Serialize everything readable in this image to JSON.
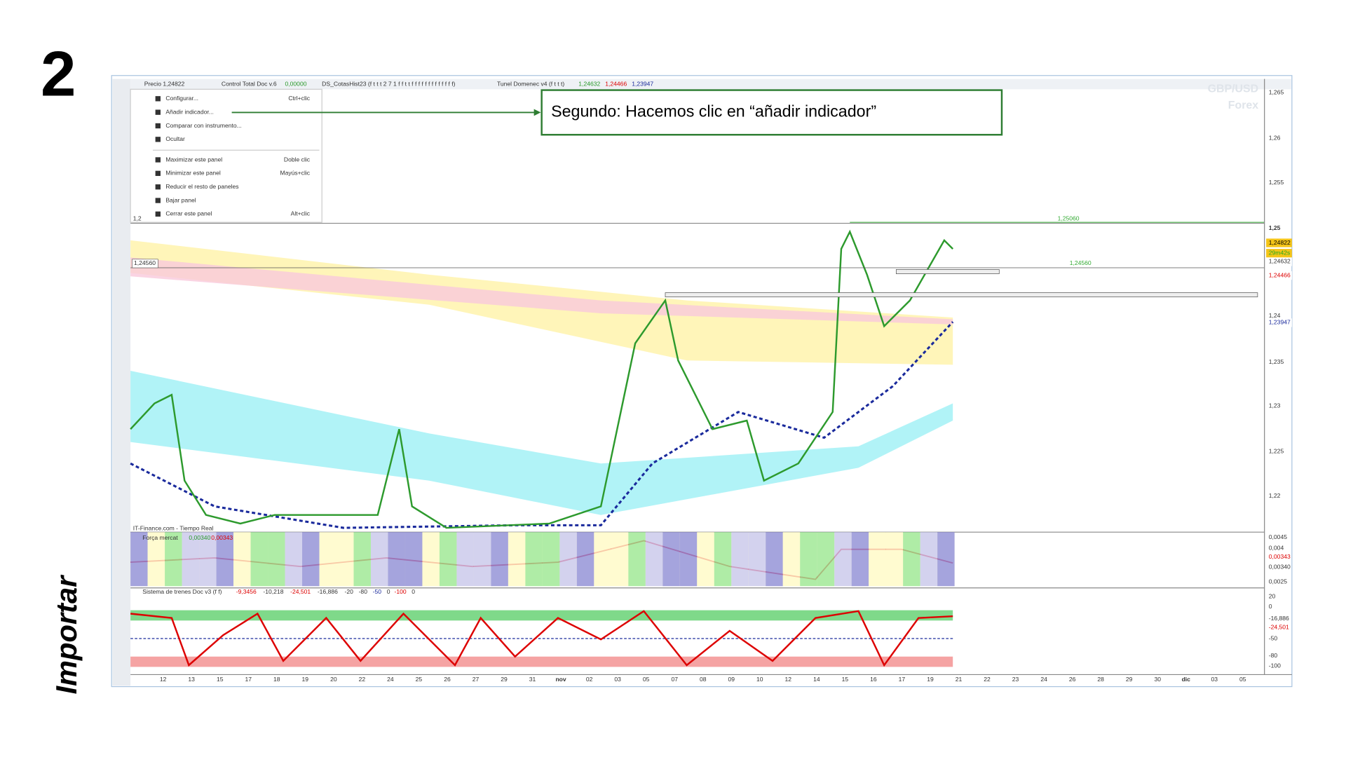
{
  "step": "2",
  "side_label": "Importar",
  "header": {
    "price": "Precio 1,24822",
    "control": "Control Total Doc v.6",
    "control_value": "0,00000",
    "cotas": "DS_CotasHist23 (f t t t 2 7 1 f f t t f f f f f f f f f f f f f)",
    "tunel": "Tunel Domenec v4 (f t t t)",
    "tunel_values": [
      "1,24632",
      "1,24466",
      "1,23947"
    ]
  },
  "menu": [
    {
      "label": "Configurar...",
      "shortcut": "Ctrl+clic"
    },
    {
      "label": "Añadir indicador...",
      "shortcut": ""
    },
    {
      "label": "Comparar con instrumento...",
      "shortcut": ""
    },
    {
      "label": "Ocultar",
      "shortcut": ""
    },
    {
      "label": "Maximizar este panel",
      "shortcut": "Doble clic"
    },
    {
      "label": "Minimizar este panel",
      "shortcut": "Mayús+clic"
    },
    {
      "label": "Reducir el resto de paneles",
      "shortcut": ""
    },
    {
      "label": "Bajar panel",
      "shortcut": ""
    },
    {
      "label": "Cerrar este panel",
      "shortcut": "Alt+clic"
    }
  ],
  "annotation": "Segundo: Hacemos clic en “añadir indicador”",
  "watermark": [
    "GBP/USD",
    "Forex"
  ],
  "price_axis": [
    "1,265",
    "1,26",
    "1,255",
    "1,25",
    "1,24",
    "1,235",
    "1,23",
    "1,225",
    "1,22"
  ],
  "price_tags": [
    "1,24822",
    "29m42s",
    "1,24632",
    "1,24466",
    "1,23947"
  ],
  "chart_labels": {
    "upper": "1,25060",
    "lower": "1,24560",
    "left_box": "1,24560",
    "left_cut": "1,2"
  },
  "panel1": {
    "source": "IT-Finance.com - Tiempo Real",
    "title": "Força mercat",
    "values": [
      "0,00340",
      "0,00343"
    ],
    "axis": [
      "0,0045",
      "0,004",
      "0,00343",
      "0,00340",
      "0,0025"
    ]
  },
  "panel2": {
    "title": "Sistema de trenes Doc v3 (f f)",
    "values": [
      "-9,3456",
      "-10,218",
      "-24,501",
      "-16,886",
      "-20",
      "-80",
      "-50",
      "0",
      "-100",
      "0"
    ],
    "axis": [
      "20",
      "0",
      "-16,886",
      "-24,501",
      "-50",
      "-80",
      "-100"
    ]
  },
  "dates": [
    "12",
    "13",
    "15",
    "17",
    "18",
    "19",
    "20",
    "22",
    "24",
    "25",
    "26",
    "27",
    "29",
    "31",
    "nov",
    "02",
    "03",
    "05",
    "07",
    "08",
    "09",
    "10",
    "12",
    "14",
    "15",
    "16",
    "17",
    "19",
    "21",
    "22",
    "23",
    "24",
    "26",
    "28",
    "29",
    "30",
    "dic",
    "03",
    "05"
  ]
}
